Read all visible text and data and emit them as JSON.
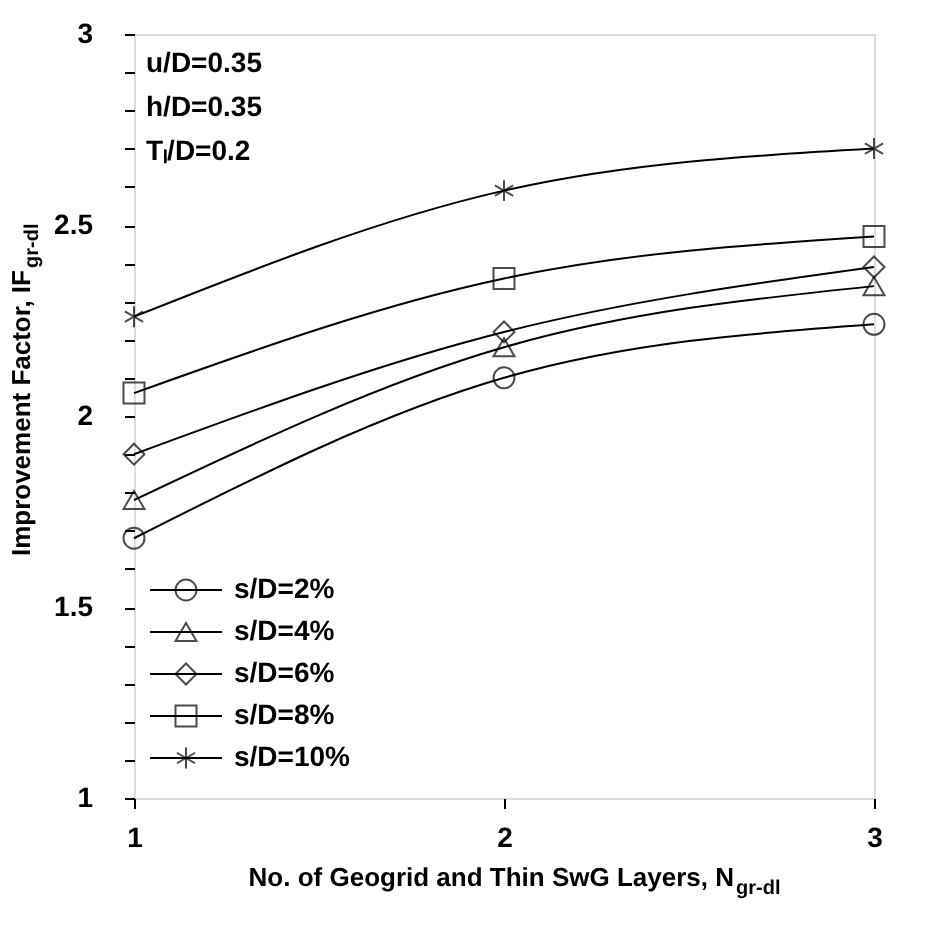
{
  "chart_data": {
    "type": "line",
    "xlabel": "No. of Geogrid and Thin SwG Layers, N$_{gr-dl}$",
    "ylabel": "Improvement Factor, IF$_{gr-dl}$",
    "x": [
      1,
      2,
      3
    ],
    "xlim": [
      1,
      3
    ],
    "xticks": [
      1,
      2,
      3
    ],
    "ylim": [
      1,
      3
    ],
    "yticks": [
      1,
      {
        "value": 1.1,
        "label": null
      },
      {
        "value": 1.2,
        "label": null
      },
      {
        "value": 1.3,
        "label": null
      },
      {
        "value": 1.4,
        "label": null
      },
      1.5,
      {
        "value": 1.6,
        "label": null
      },
      {
        "value": 1.7,
        "label": null
      },
      {
        "value": 1.8,
        "label": null
      },
      {
        "value": 1.9,
        "label": null
      },
      2,
      {
        "value": 2.1,
        "label": null
      },
      {
        "value": 2.2,
        "label": null
      },
      {
        "value": 2.3,
        "label": null
      },
      {
        "value": 2.4,
        "label": null
      },
      2.5,
      {
        "value": 2.6,
        "label": null
      },
      {
        "value": 2.7,
        "label": null
      },
      {
        "value": 2.8,
        "label": null
      },
      {
        "value": 2.9,
        "label": null
      },
      3
    ],
    "grid": false,
    "legend": "bottom left",
    "line_style": "solid",
    "annotations": [
      "u/D=0.35",
      "h/D=0.35",
      "Tₗ/D=0.2"
    ],
    "series": [
      {
        "name": "s/D=2%",
        "color": "#000000",
        "marker": "circle",
        "values": [
          1.68,
          2.1,
          2.24
        ]
      },
      {
        "name": "s/D=4%",
        "color": "#000000",
        "marker": "triangle",
        "values": [
          1.78,
          2.18,
          2.34
        ]
      },
      {
        "name": "s/D=6%",
        "color": "#000000",
        "marker": "diamond",
        "values": [
          1.9,
          2.22,
          2.39
        ]
      },
      {
        "name": "s/D=8%",
        "color": "#000000",
        "marker": "square",
        "values": [
          2.06,
          2.36,
          2.47
        ]
      },
      {
        "name": "s/D=10%",
        "color": "#000000",
        "marker": "cross",
        "values": [
          2.26,
          2.59,
          2.7
        ]
      }
    ]
  }
}
